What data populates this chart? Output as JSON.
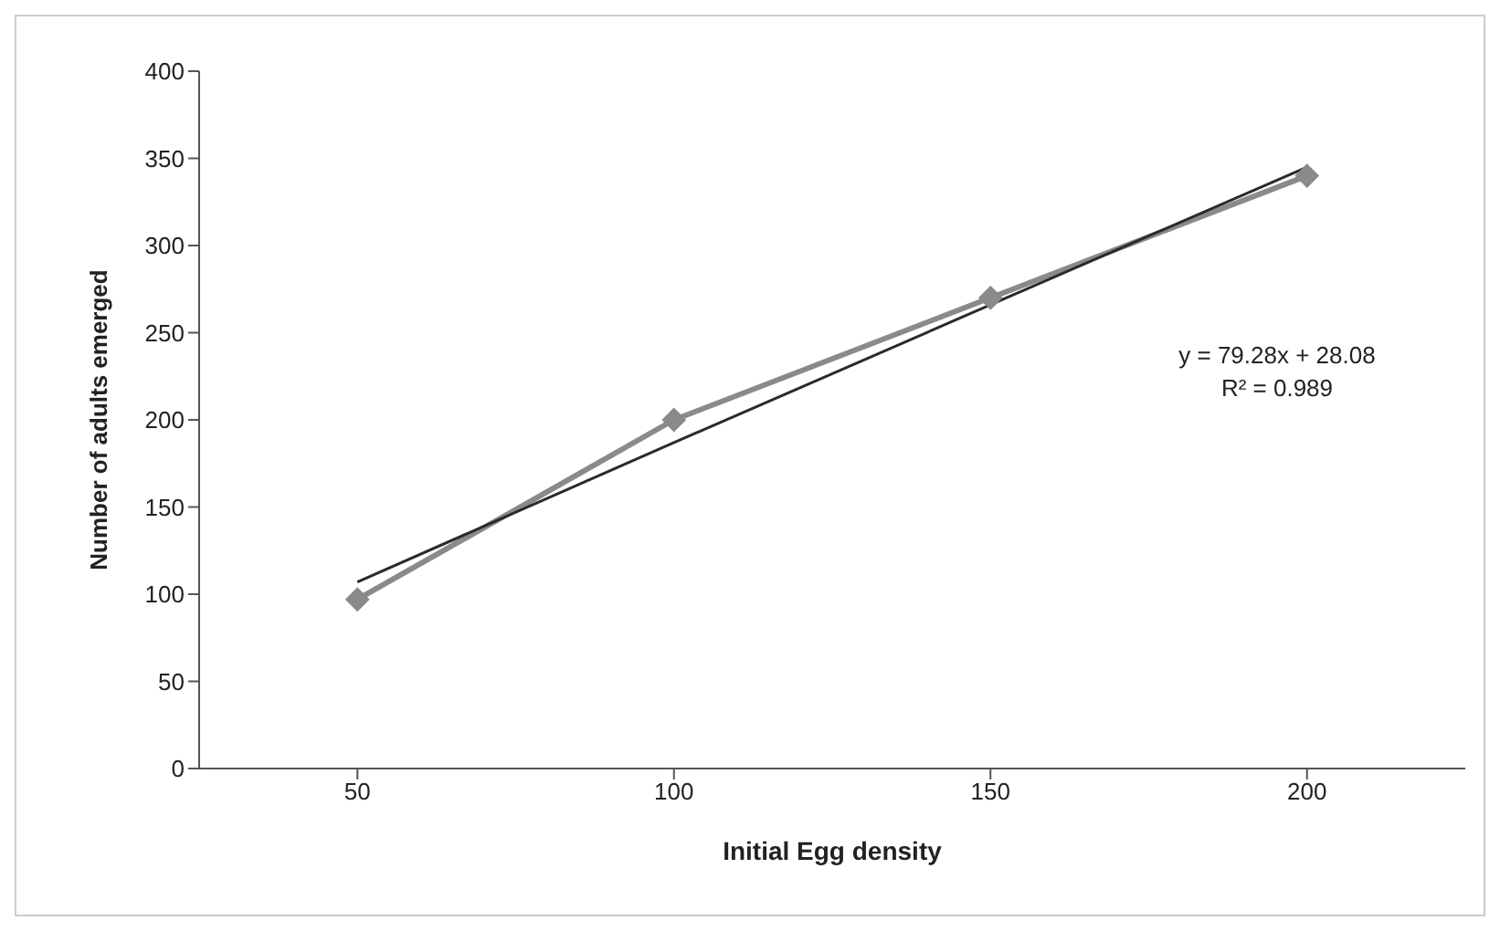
{
  "chart_data": {
    "type": "line",
    "xlabel": "Initial  Egg density",
    "ylabel": "Number of adults emerged",
    "categories": [
      "50",
      "100",
      "150",
      "200"
    ],
    "series": [
      {
        "color": "#8a8a8a",
        "values": [
          97,
          200,
          270,
          340
        ],
        "marker": "diamond"
      },
      {
        "color": "#2a2a2a",
        "values": [
          107,
          187,
          266,
          345
        ],
        "marker": "none"
      }
    ],
    "ylim": [
      0,
      400
    ],
    "yticks": [
      0,
      50,
      100,
      150,
      200,
      250,
      300,
      350,
      400
    ],
    "grid": false,
    "legend": false,
    "annotations": [
      "y = 79.28x + 28.08",
      "R² = 0.989"
    ]
  }
}
